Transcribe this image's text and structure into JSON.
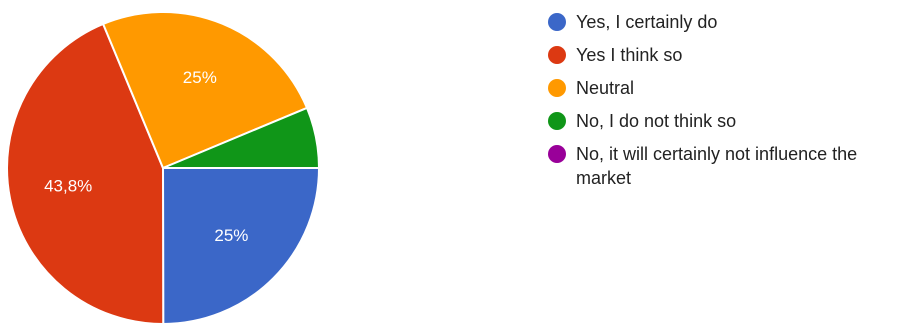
{
  "chart_data": {
    "type": "pie",
    "title": "",
    "categories": [
      "Yes, I certainly do",
      "Yes I think so",
      "Neutral",
      "No, I do not think so",
      "No, it will certainly not influence the market"
    ],
    "values": [
      25,
      43.8,
      25,
      6.3,
      0
    ],
    "value_labels": [
      "25%",
      "43,8%",
      "25%",
      "",
      ""
    ],
    "colors": [
      "#3b67c8",
      "#dc3912",
      "#ff9900",
      "#109618",
      "#990099"
    ],
    "legend_position": "right"
  }
}
